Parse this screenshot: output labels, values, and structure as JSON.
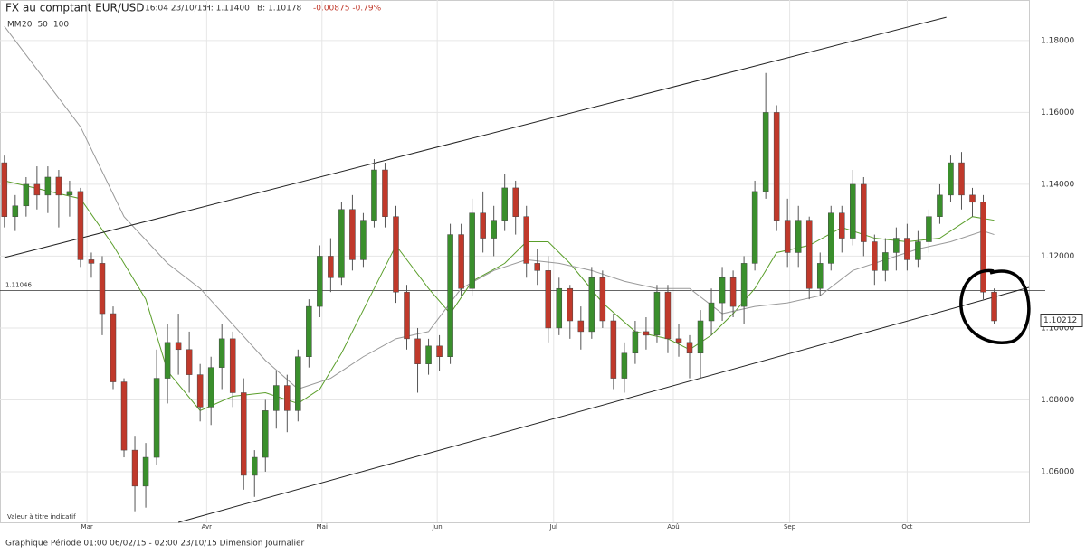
{
  "chart_data": {
    "type": "candlestick",
    "title": "FX au comptant EUR/USD",
    "header_time": "16:04 23/10/15",
    "header_high": "H: 1.11400",
    "header_low": "B: 1.10178",
    "header_change": "-0.00875 -0.79%",
    "legend_title": "MM",
    "legend_items": [
      {
        "name": "20",
        "color": "#5a9e2a"
      },
      {
        "name": "50",
        "color": "#999999"
      },
      {
        "name": "100",
        "color": "#c0392b"
      }
    ],
    "note": "Valeur à titre indicatif",
    "footer": "Graphique Période 01:00 06/02/15 - 02:00 23/10/15   Dimension Journalier",
    "up_color": "#3a8f2c",
    "down_color": "#c0392b",
    "open": [
      1.146,
      1.131,
      1.134,
      1.14,
      1.137,
      1.142,
      1.137,
      1.138,
      1.119,
      1.118,
      1.104,
      1.085,
      1.066,
      1.056,
      1.064,
      1.086,
      1.096,
      1.094,
      1.087,
      1.078,
      1.089,
      1.097,
      1.082,
      1.059,
      1.064,
      1.077,
      1.084,
      1.077,
      1.092,
      1.106,
      1.12,
      1.114,
      1.133,
      1.119,
      1.13,
      1.144,
      1.131,
      1.11,
      1.097,
      1.09,
      1.095,
      1.092,
      1.126,
      1.111,
      1.132,
      1.125,
      1.13,
      1.139,
      1.131,
      1.118,
      1.116,
      1.1,
      1.111,
      1.102,
      1.099,
      1.114,
      1.102,
      1.086,
      1.093,
      1.099,
      1.098,
      1.11,
      1.097,
      1.096,
      1.093,
      1.102,
      1.107,
      1.114,
      1.106,
      1.118,
      1.138,
      1.16,
      1.13,
      1.121,
      1.13,
      1.111,
      1.118,
      1.132,
      1.125,
      1.14,
      1.124,
      1.116,
      1.121,
      1.125,
      1.119,
      1.124,
      1.131,
      1.137,
      1.146,
      1.137,
      1.135,
      1.11
    ],
    "high": [
      1.148,
      1.137,
      1.142,
      1.145,
      1.145,
      1.144,
      1.141,
      1.139,
      1.121,
      1.12,
      1.106,
      1.086,
      1.07,
      1.068,
      1.094,
      1.101,
      1.104,
      1.099,
      1.09,
      1.092,
      1.101,
      1.099,
      1.086,
      1.066,
      1.08,
      1.088,
      1.087,
      1.094,
      1.108,
      1.123,
      1.125,
      1.135,
      1.137,
      1.132,
      1.147,
      1.146,
      1.134,
      1.112,
      1.1,
      1.097,
      1.098,
      1.129,
      1.129,
      1.136,
      1.138,
      1.134,
      1.143,
      1.141,
      1.134,
      1.122,
      1.12,
      1.114,
      1.112,
      1.106,
      1.117,
      1.116,
      1.104,
      1.096,
      1.102,
      1.103,
      1.112,
      1.112,
      1.101,
      1.098,
      1.105,
      1.111,
      1.117,
      1.116,
      1.12,
      1.141,
      1.171,
      1.162,
      1.136,
      1.134,
      1.131,
      1.121,
      1.134,
      1.134,
      1.144,
      1.142,
      1.126,
      1.125,
      1.128,
      1.129,
      1.127,
      1.133,
      1.14,
      1.148,
      1.149,
      1.139,
      1.137,
      1.111
    ],
    "low": [
      1.128,
      1.127,
      1.131,
      1.133,
      1.132,
      1.128,
      1.131,
      1.117,
      1.114,
      1.098,
      1.083,
      1.064,
      1.049,
      1.05,
      1.062,
      1.079,
      1.087,
      1.082,
      1.074,
      1.073,
      1.083,
      1.078,
      1.055,
      1.053,
      1.06,
      1.072,
      1.071,
      1.074,
      1.089,
      1.103,
      1.11,
      1.112,
      1.116,
      1.117,
      1.128,
      1.128,
      1.107,
      1.094,
      1.082,
      1.087,
      1.088,
      1.09,
      1.109,
      1.109,
      1.121,
      1.12,
      1.127,
      1.126,
      1.114,
      1.112,
      1.096,
      1.098,
      1.097,
      1.094,
      1.097,
      1.1,
      1.083,
      1.082,
      1.09,
      1.094,
      1.096,
      1.093,
      1.092,
      1.086,
      1.086,
      1.098,
      1.102,
      1.103,
      1.101,
      1.116,
      1.136,
      1.127,
      1.117,
      1.117,
      1.108,
      1.109,
      1.116,
      1.121,
      1.123,
      1.12,
      1.112,
      1.113,
      1.116,
      1.116,
      1.117,
      1.121,
      1.129,
      1.135,
      1.133,
      1.131,
      1.108,
      1.101
    ],
    "close": [
      1.131,
      1.134,
      1.14,
      1.137,
      1.142,
      1.137,
      1.138,
      1.119,
      1.118,
      1.104,
      1.085,
      1.066,
      1.056,
      1.064,
      1.086,
      1.096,
      1.094,
      1.087,
      1.078,
      1.089,
      1.097,
      1.082,
      1.059,
      1.064,
      1.077,
      1.084,
      1.077,
      1.092,
      1.106,
      1.12,
      1.114,
      1.133,
      1.119,
      1.13,
      1.144,
      1.131,
      1.11,
      1.097,
      1.09,
      1.095,
      1.092,
      1.126,
      1.111,
      1.132,
      1.125,
      1.13,
      1.139,
      1.131,
      1.118,
      1.116,
      1.1,
      1.111,
      1.102,
      1.099,
      1.114,
      1.102,
      1.086,
      1.093,
      1.099,
      1.098,
      1.11,
      1.097,
      1.096,
      1.093,
      1.102,
      1.107,
      1.114,
      1.106,
      1.118,
      1.138,
      1.16,
      1.13,
      1.121,
      1.13,
      1.111,
      1.118,
      1.132,
      1.125,
      1.14,
      1.124,
      1.116,
      1.121,
      1.125,
      1.119,
      1.124,
      1.131,
      1.137,
      1.146,
      1.137,
      1.135,
      1.11,
      1.102
    ],
    "moving_averages": [
      {
        "name": "20",
        "color": "#5a9e2a",
        "x": [
          0,
          7,
          10,
          13,
          15,
          18,
          21,
          24,
          27,
          29,
          31,
          34,
          36,
          39,
          41,
          43,
          46,
          48,
          50,
          52,
          55,
          58,
          61,
          63,
          65,
          67,
          69,
          71,
          74,
          77,
          80,
          83,
          86,
          89,
          91
        ],
        "values": [
          1.141,
          1.136,
          1.123,
          1.108,
          1.088,
          1.077,
          1.081,
          1.082,
          1.079,
          1.083,
          1.093,
          1.111,
          1.123,
          1.111,
          1.104,
          1.113,
          1.118,
          1.124,
          1.124,
          1.118,
          1.107,
          1.099,
          1.097,
          1.094,
          1.098,
          1.104,
          1.111,
          1.121,
          1.123,
          1.128,
          1.125,
          1.124,
          1.125,
          1.131,
          1.13
        ]
      },
      {
        "name": "50",
        "color": "#999999",
        "x": [
          0,
          7,
          11,
          15,
          18,
          21,
          24,
          27,
          30,
          33,
          36,
          39,
          42,
          45,
          48,
          51,
          54,
          57,
          60,
          63,
          66,
          69,
          72,
          75,
          78,
          81,
          84,
          87,
          90,
          91
        ],
        "values": [
          1.184,
          1.156,
          1.131,
          1.118,
          1.111,
          1.101,
          1.091,
          1.083,
          1.086,
          1.092,
          1.097,
          1.099,
          1.111,
          1.116,
          1.119,
          1.118,
          1.116,
          1.113,
          1.111,
          1.111,
          1.104,
          1.106,
          1.107,
          1.109,
          1.116,
          1.119,
          1.122,
          1.124,
          1.127,
          1.126
        ]
      }
    ],
    "trendlines": [
      {
        "x": [
          0,
          86.6
        ],
        "values": [
          1.1196,
          1.1865
        ]
      },
      {
        "x": [
          16,
          94.2
        ],
        "values": [
          1.0459,
          1.1113
        ]
      }
    ],
    "reference_line": 1.11046,
    "last_price": 1.10212,
    "xlim": [
      -0.4,
      94.2
    ],
    "ylim": [
      1.0459,
      1.1913
    ],
    "xticks": [
      {
        "value": 7.6,
        "label": "Mar"
      },
      {
        "value": 18.6,
        "label": "Avr"
      },
      {
        "value": 29.2,
        "label": "Mai"
      },
      {
        "value": 39.8,
        "label": "Jun"
      },
      {
        "value": 50.5,
        "label": "Jul"
      },
      {
        "value": 61.5,
        "label": "Aoû"
      },
      {
        "value": 72.2,
        "label": "Sep"
      },
      {
        "value": 83.0,
        "label": "Oct"
      }
    ],
    "yticks": [
      {
        "value": 1.06,
        "label": "1.06000"
      },
      {
        "value": 1.08,
        "label": "1.08000"
      },
      {
        "value": 1.1,
        "label": "1.10000"
      },
      {
        "value": 1.12,
        "label": "1.12000"
      },
      {
        "value": 1.14,
        "label": "1.14000"
      },
      {
        "value": 1.16,
        "label": "1.16000"
      },
      {
        "value": 1.18,
        "label": "1.18000"
      }
    ],
    "grid": true
  }
}
